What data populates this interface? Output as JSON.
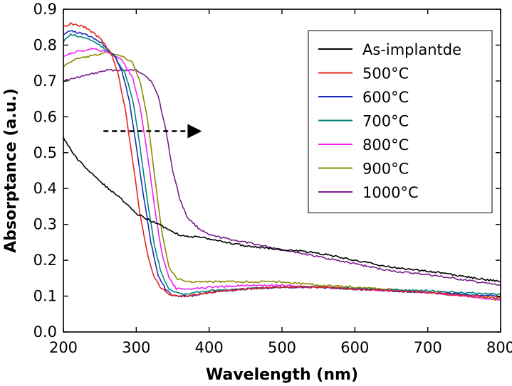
{
  "chart_data": {
    "type": "line",
    "title": "",
    "xlabel": "Wavelength (nm)",
    "ylabel": "Absorptance (a.u.)",
    "xlim": [
      200,
      800
    ],
    "ylim": [
      0.0,
      0.9
    ],
    "xticks": [
      200,
      300,
      400,
      500,
      600,
      700,
      800
    ],
    "yticks": [
      0.0,
      0.1,
      0.2,
      0.3,
      0.4,
      0.5,
      0.6,
      0.7,
      0.8,
      0.9
    ],
    "xtick_labels": [
      "200",
      "300",
      "400",
      "500",
      "600",
      "700",
      "800"
    ],
    "ytick_labels": [
      "0.0",
      "0.1",
      "0.2",
      "0.3",
      "0.4",
      "0.5",
      "0.6",
      "0.7",
      "0.8",
      "0.9"
    ],
    "grid": false,
    "legend_position": "top-right",
    "annotation": {
      "type": "dashed-arrow",
      "from": [
        255,
        0.56
      ],
      "to": [
        390,
        0.56
      ]
    },
    "series": [
      {
        "name": "As-implantde",
        "color": "#000000",
        "x": [
          200,
          220,
          250,
          280,
          300,
          320,
          340,
          350,
          360,
          400,
          450,
          500,
          550,
          600,
          650,
          700,
          750,
          800
        ],
        "y": [
          0.54,
          0.48,
          0.42,
          0.37,
          0.33,
          0.31,
          0.29,
          0.28,
          0.27,
          0.26,
          0.24,
          0.23,
          0.22,
          0.2,
          0.18,
          0.17,
          0.155,
          0.14
        ]
      },
      {
        "name": "500°C",
        "color": "#e8231c",
        "x": [
          200,
          210,
          230,
          250,
          265,
          275,
          285,
          295,
          305,
          315,
          325,
          335,
          345,
          355,
          370,
          400,
          450,
          500,
          550,
          600,
          700,
          800
        ],
        "y": [
          0.85,
          0.86,
          0.85,
          0.82,
          0.78,
          0.72,
          0.62,
          0.48,
          0.33,
          0.22,
          0.15,
          0.12,
          0.105,
          0.1,
          0.1,
          0.11,
          0.12,
          0.125,
          0.125,
          0.12,
          0.11,
          0.095
        ]
      },
      {
        "name": "600°C",
        "color": "#1a2fb5",
        "x": [
          200,
          210,
          230,
          250,
          270,
          280,
          290,
          300,
          310,
          320,
          330,
          340,
          350,
          360,
          375,
          400,
          450,
          500,
          550,
          600,
          700,
          800
        ],
        "y": [
          0.83,
          0.84,
          0.83,
          0.81,
          0.77,
          0.73,
          0.65,
          0.52,
          0.38,
          0.25,
          0.16,
          0.12,
          0.1,
          0.1,
          0.1,
          0.11,
          0.12,
          0.125,
          0.125,
          0.12,
          0.11,
          0.1
        ]
      },
      {
        "name": "700°C",
        "color": "#00857f",
        "x": [
          200,
          210,
          230,
          250,
          270,
          285,
          295,
          305,
          315,
          325,
          335,
          345,
          355,
          365,
          380,
          400,
          450,
          500,
          550,
          600,
          700,
          800
        ],
        "y": [
          0.81,
          0.83,
          0.82,
          0.8,
          0.77,
          0.72,
          0.65,
          0.52,
          0.37,
          0.24,
          0.16,
          0.12,
          0.11,
          0.105,
          0.11,
          0.115,
          0.12,
          0.125,
          0.125,
          0.12,
          0.115,
          0.105
        ]
      },
      {
        "name": "800°C",
        "color": "#ee22ee",
        "x": [
          200,
          215,
          240,
          260,
          280,
          295,
          305,
          315,
          325,
          335,
          345,
          355,
          370,
          400,
          450,
          500,
          550,
          600,
          700,
          800
        ],
        "y": [
          0.77,
          0.78,
          0.79,
          0.78,
          0.76,
          0.71,
          0.63,
          0.5,
          0.35,
          0.22,
          0.15,
          0.12,
          0.12,
          0.125,
          0.13,
          0.13,
          0.125,
          0.12,
          0.11,
          0.09
        ]
      },
      {
        "name": "900°C",
        "color": "#8a8a00",
        "x": [
          200,
          215,
          240,
          260,
          280,
          295,
          305,
          315,
          325,
          335,
          345,
          355,
          370,
          400,
          450,
          500,
          550,
          600,
          700,
          800
        ],
        "y": [
          0.74,
          0.76,
          0.77,
          0.78,
          0.77,
          0.75,
          0.7,
          0.6,
          0.44,
          0.28,
          0.18,
          0.15,
          0.14,
          0.14,
          0.14,
          0.14,
          0.13,
          0.125,
          0.11,
          0.09
        ]
      },
      {
        "name": "1000°C",
        "color": "#7a1f8e",
        "x": [
          200,
          220,
          240,
          260,
          280,
          300,
          310,
          320,
          330,
          340,
          350,
          360,
          370,
          385,
          400,
          450,
          500,
          550,
          600,
          650,
          700,
          750,
          800
        ],
        "y": [
          0.7,
          0.71,
          0.72,
          0.73,
          0.73,
          0.73,
          0.72,
          0.7,
          0.66,
          0.57,
          0.45,
          0.37,
          0.32,
          0.29,
          0.27,
          0.25,
          0.23,
          0.21,
          0.19,
          0.17,
          0.16,
          0.145,
          0.13
        ]
      }
    ]
  }
}
